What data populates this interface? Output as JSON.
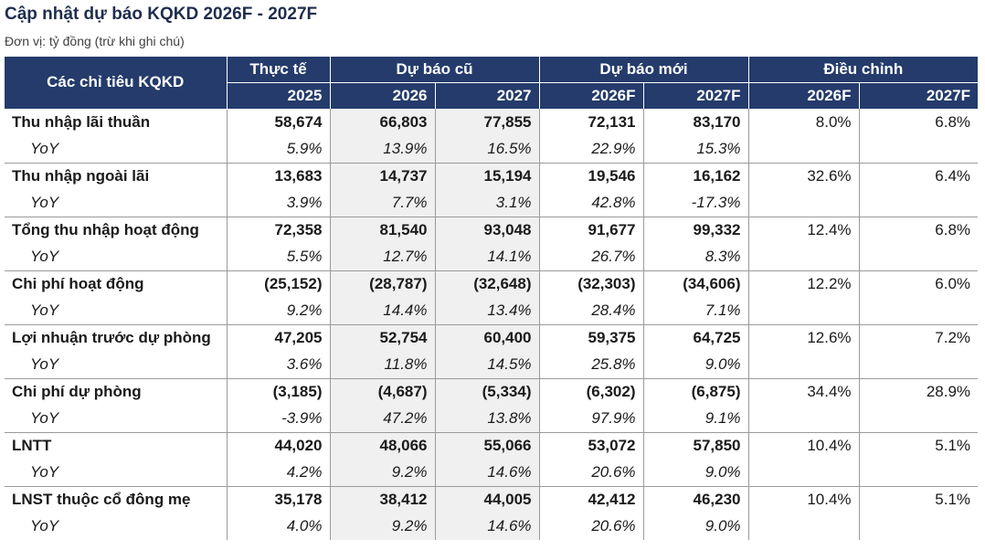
{
  "title": "Cập nhật dự báo KQKD 2026F - 2027F",
  "subtitle": "Đơn vị: tỷ đồng (trừ khi ghi chú)",
  "header": {
    "label": "Các chỉ tiêu KQKD",
    "groups": [
      "Thực tế",
      "Dự báo cũ",
      "Dự báo mới",
      "Điều chỉnh"
    ],
    "years": [
      "2025",
      "2026",
      "2027",
      "2026F",
      "2027F",
      "2026F",
      "2027F"
    ]
  },
  "rows": [
    {
      "label": "Thu nhập lãi thuần",
      "values": [
        "58,674",
        "66,803",
        "77,855",
        "72,131",
        "83,170",
        "8.0%",
        "6.8%"
      ],
      "yoy_label": "YoY",
      "yoy": [
        "5.9%",
        "13.9%",
        "16.5%",
        "22.9%",
        "15.3%"
      ]
    },
    {
      "label": "Thu nhập ngoài lãi",
      "values": [
        "13,683",
        "14,737",
        "15,194",
        "19,546",
        "16,162",
        "32.6%",
        "6.4%"
      ],
      "yoy_label": "YoY",
      "yoy": [
        "3.9%",
        "7.7%",
        "3.1%",
        "42.8%",
        "-17.3%"
      ]
    },
    {
      "label": "Tổng thu nhập hoạt động",
      "values": [
        "72,358",
        "81,540",
        "93,048",
        "91,677",
        "99,332",
        "12.4%",
        "6.8%"
      ],
      "yoy_label": "YoY",
      "yoy": [
        "5.5%",
        "12.7%",
        "14.1%",
        "26.7%",
        "8.3%"
      ]
    },
    {
      "label": "Chi phí hoạt động",
      "values": [
        "(25,152)",
        "(28,787)",
        "(32,648)",
        "(32,303)",
        "(34,606)",
        "12.2%",
        "6.0%"
      ],
      "yoy_label": "YoY",
      "yoy": [
        "9.2%",
        "14.4%",
        "13.4%",
        "28.4%",
        "7.1%"
      ]
    },
    {
      "label": "Lợi nhuận trước dự phòng",
      "values": [
        "47,205",
        "52,754",
        "60,400",
        "59,375",
        "64,725",
        "12.6%",
        "7.2%"
      ],
      "yoy_label": "YoY",
      "yoy": [
        "3.6%",
        "11.8%",
        "14.5%",
        "25.8%",
        "9.0%"
      ]
    },
    {
      "label": "Chi phí dự phòng",
      "values": [
        "(3,185)",
        "(4,687)",
        "(5,334)",
        "(6,302)",
        "(6,875)",
        "34.4%",
        "28.9%"
      ],
      "yoy_label": "YoY",
      "yoy": [
        "-3.9%",
        "47.2%",
        "13.8%",
        "97.9%",
        "9.1%"
      ]
    },
    {
      "label": "LNTT",
      "values": [
        "44,020",
        "48,066",
        "55,066",
        "53,072",
        "57,850",
        "10.4%",
        "5.1%"
      ],
      "yoy_label": "YoY",
      "yoy": [
        "4.2%",
        "9.2%",
        "14.6%",
        "20.6%",
        "9.0%"
      ]
    },
    {
      "label": "LNST thuộc cổ đông mẹ",
      "values": [
        "35,178",
        "38,412",
        "44,005",
        "42,412",
        "46,230",
        "10.4%",
        "5.1%"
      ],
      "yoy_label": "YoY",
      "yoy": [
        "4.0%",
        "9.2%",
        "14.6%",
        "20.6%",
        "9.0%"
      ]
    }
  ],
  "colors": {
    "header_bg": "#243b6b",
    "header_text": "#ffffff",
    "shade_bg": "#f0f0f0",
    "title_color": "#1f2d4d"
  }
}
